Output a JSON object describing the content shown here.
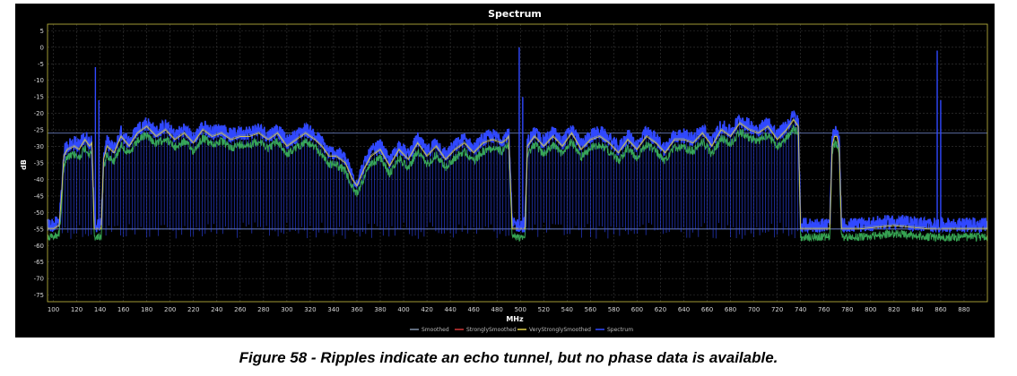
{
  "caption": "Figure 58 - Ripples indicate an echo tunnel, but no phase data is available.",
  "chart_data": {
    "type": "line",
    "title": "Spectrum",
    "xlabel": "MHz",
    "ylabel": "dB",
    "xlim": [
      95,
      900
    ],
    "ylim": [
      -77,
      7
    ],
    "x_ticks": [
      100,
      120,
      140,
      160,
      180,
      200,
      220,
      240,
      260,
      280,
      300,
      320,
      340,
      360,
      380,
      400,
      420,
      440,
      460,
      480,
      500,
      520,
      540,
      560,
      580,
      600,
      620,
      640,
      660,
      680,
      700,
      720,
      740,
      760,
      780,
      800,
      820,
      840,
      860,
      880
    ],
    "y_ticks": [
      5,
      0,
      -5,
      -10,
      -15,
      -20,
      -25,
      -30,
      -35,
      -40,
      -45,
      -50,
      -55,
      -60,
      -65,
      -70,
      -75
    ],
    "grid": true,
    "legend_position": "bottom",
    "colors": {
      "background": "#000000",
      "grid": "#3a3a3a",
      "spectrum": "#3048ff",
      "smoothed": "#8090a8",
      "strongly_smoothed": "#d03838",
      "very_strongly_smoothed": "#e0d048",
      "reference_line": "#7a8fd8"
    },
    "reference_lines_db": [
      -26,
      -55
    ],
    "series": [
      {
        "name": "Smoothed",
        "color": "#8090a8"
      },
      {
        "name": "StronglySmoothed",
        "color": "#d03838"
      },
      {
        "name": "VeryStronglySmoothed",
        "color": "#e0d048"
      },
      {
        "name": "Spectrum",
        "color": "#3048ff"
      }
    ],
    "spectrum_envelope": {
      "x": [
        95,
        100,
        105,
        107,
        109,
        112,
        118,
        122,
        127,
        131,
        133,
        135,
        138,
        140,
        141,
        143,
        146,
        152,
        158,
        165,
        172,
        180,
        188,
        196,
        204,
        212,
        220,
        228,
        236,
        244,
        252,
        260,
        268,
        276,
        284,
        292,
        300,
        308,
        316,
        324,
        330,
        336,
        342,
        350,
        356,
        360,
        366,
        372,
        380,
        388,
        396,
        404,
        412,
        420,
        428,
        436,
        444,
        452,
        460,
        468,
        476,
        484,
        488,
        490,
        493,
        495,
        499,
        502,
        504,
        506,
        512,
        520,
        528,
        536,
        544,
        552,
        560,
        568,
        576,
        584,
        592,
        600,
        608,
        616,
        624,
        632,
        640,
        648,
        656,
        664,
        672,
        680,
        688,
        696,
        704,
        712,
        720,
        728,
        734,
        738,
        740,
        742,
        748,
        760,
        765,
        767,
        769,
        771,
        773,
        775,
        790,
        820,
        850,
        880,
        900
      ],
      "y": [
        -55,
        -55,
        -54,
        -45,
        -33,
        -31,
        -30,
        -31,
        -28,
        -30,
        -29,
        -55,
        -55,
        -55,
        -55,
        -34,
        -30,
        -32,
        -27,
        -30,
        -26,
        -24,
        -27,
        -25,
        -28,
        -26,
        -29,
        -25,
        -27,
        -26,
        -28,
        -27,
        -27,
        -26,
        -28,
        -26,
        -30,
        -28,
        -26,
        -28,
        -30,
        -33,
        -33,
        -35,
        -40,
        -42,
        -37,
        -33,
        -31,
        -36,
        -31,
        -34,
        -29,
        -33,
        -30,
        -34,
        -31,
        -29,
        -32,
        -29,
        -28,
        -29,
        -28,
        -27,
        -55,
        -55,
        -55,
        -55,
        -55,
        -30,
        -27,
        -30,
        -27,
        -30,
        -26,
        -31,
        -28,
        -27,
        -29,
        -32,
        -28,
        -31,
        -27,
        -29,
        -32,
        -28,
        -28,
        -29,
        -26,
        -30,
        -25,
        -27,
        -23,
        -25,
        -26,
        -24,
        -28,
        -25,
        -22,
        -24,
        -55,
        -55,
        -55,
        -55,
        -55,
        -30,
        -27,
        -27,
        -30,
        -55,
        -55,
        -54,
        -55,
        -55,
        -55
      ]
    },
    "spikes": [
      {
        "x": 136,
        "y": -6
      },
      {
        "x": 139,
        "y": -16
      },
      {
        "x": 499,
        "y": 0
      },
      {
        "x": 502,
        "y": -15
      },
      {
        "x": 857,
        "y": -1
      },
      {
        "x": 860,
        "y": -16
      }
    ]
  }
}
